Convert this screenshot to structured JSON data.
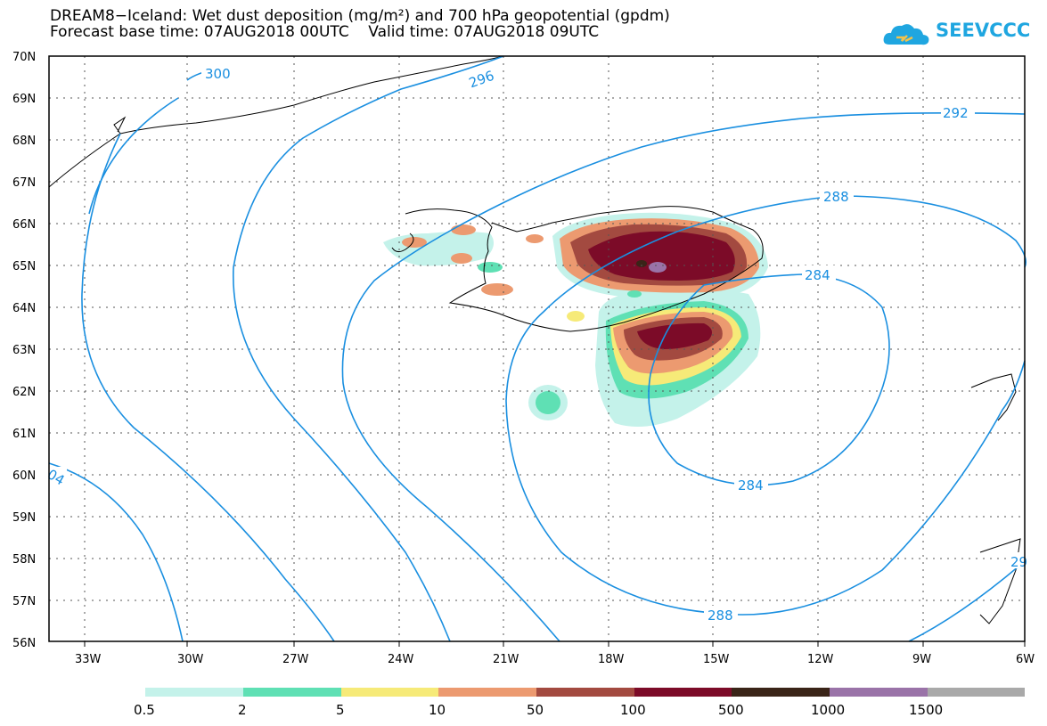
{
  "header": {
    "title_line1": "DREAM8−Iceland: Wet dust deposition (mg/m²) and 700 hPa geopotential (gpdm)",
    "title_line2": "Forecast base time: 07AUG2018 00UTC    Valid time: 07AUG2018 09UTC",
    "logo_text": "SEEVCCC"
  },
  "map": {
    "lat_labels": [
      "70N",
      "69N",
      "68N",
      "67N",
      "66N",
      "65N",
      "64N",
      "63N",
      "62N",
      "61N",
      "60N",
      "59N",
      "58N",
      "57N",
      "56N"
    ],
    "lon_labels": [
      "33W",
      "30W",
      "27W",
      "24W",
      "21W",
      "18W",
      "15W",
      "12W",
      "9W",
      "6W"
    ],
    "contour_labels": [
      "300",
      "296",
      "292",
      "288",
      "284",
      "284",
      "288",
      "04",
      "29"
    ],
    "colors": {
      "contour": "#1a8fe0",
      "coast": "#000000"
    }
  },
  "legend": {
    "labels": [
      "0.5",
      "2",
      "5",
      "10",
      "50",
      "100",
      "500",
      "1000",
      "1500"
    ],
    "colors": [
      "#c4f2ea",
      "#5fe0b4",
      "#f6ea78",
      "#ec9a70",
      "#a34a40",
      "#7c0b28",
      "#3a2418",
      "#9a73a8",
      "#a9a9a9"
    ]
  }
}
